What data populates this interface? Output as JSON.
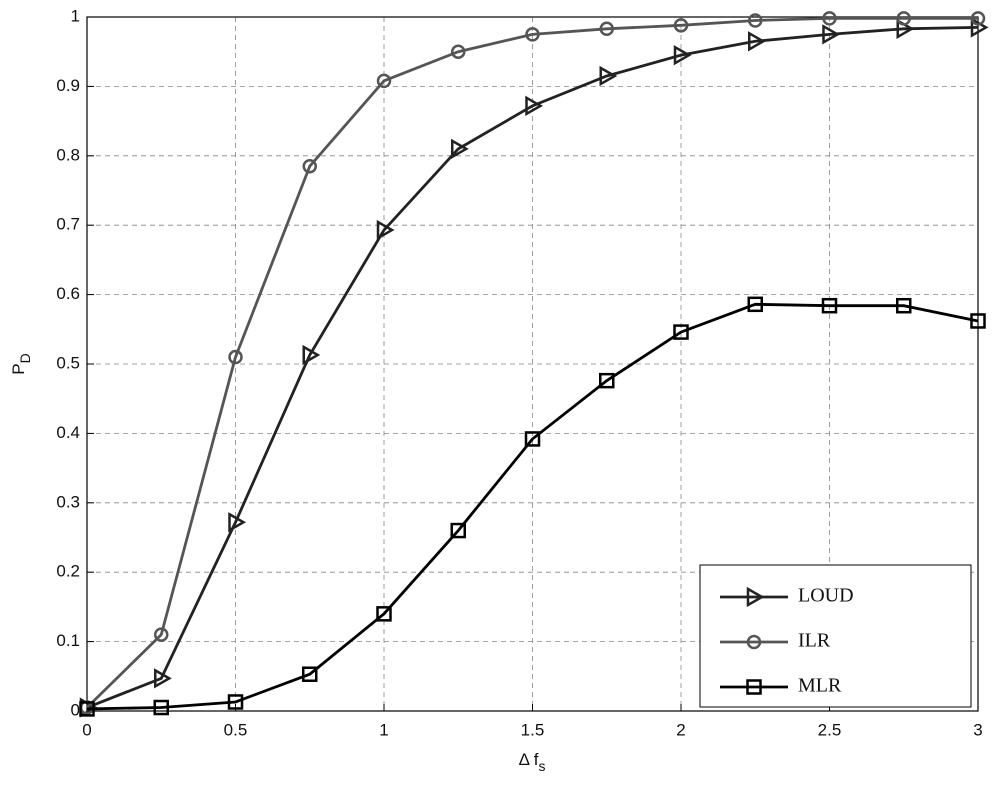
{
  "chart_data": {
    "type": "line",
    "xlabel": "Δ f",
    "xlabel_subscript": "s",
    "ylabel": "P",
    "ylabel_subscript": "D",
    "x": [
      0,
      0.25,
      0.5,
      0.75,
      1,
      1.25,
      1.5,
      1.75,
      2,
      2.25,
      2.5,
      2.75,
      3
    ],
    "series": [
      {
        "name": "LOUD",
        "color": "#222222",
        "marker": "triangle-right",
        "values": [
          0.005,
          0.047,
          0.272,
          0.513,
          0.693,
          0.81,
          0.872,
          0.915,
          0.945,
          0.965,
          0.975,
          0.983,
          0.985
        ]
      },
      {
        "name": "ILR",
        "color": "#555555",
        "marker": "circle",
        "values": [
          0.005,
          0.11,
          0.51,
          0.785,
          0.908,
          0.95,
          0.975,
          0.983,
          0.988,
          0.995,
          0.998,
          0.998,
          0.998
        ]
      },
      {
        "name": "MLR",
        "color": "#000000",
        "marker": "square",
        "values": [
          0.003,
          0.005,
          0.013,
          0.053,
          0.14,
          0.26,
          0.392,
          0.476,
          0.546,
          0.586,
          0.584,
          0.584,
          0.562
        ]
      }
    ],
    "xlim": [
      0,
      3
    ],
    "xticks": [
      0,
      0.5,
      1,
      1.5,
      2,
      2.5,
      3
    ],
    "ylim": [
      0,
      1
    ],
    "yticks": [
      0,
      0.1,
      0.2,
      0.3,
      0.4,
      0.5,
      0.6,
      0.7,
      0.8,
      0.9,
      1
    ],
    "grid": true,
    "legend": "lower right"
  }
}
